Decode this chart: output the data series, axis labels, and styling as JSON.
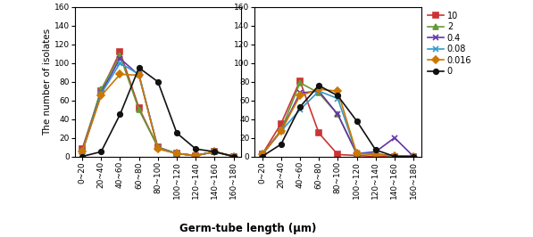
{
  "x_labels": [
    "0~20",
    "20~40",
    "40~60",
    "60~80",
    "80~100",
    "100~120",
    "120~140",
    "140~160",
    "160~180"
  ],
  "x_positions": [
    0,
    1,
    2,
    3,
    4,
    5,
    6,
    7,
    8
  ],
  "left_chart": {
    "series": {
      "10": [
        8,
        70,
        112,
        52,
        10,
        3,
        1,
        5,
        0
      ],
      "2": [
        5,
        72,
        108,
        50,
        10,
        3,
        1,
        5,
        0
      ],
      "0.4": [
        5,
        68,
        105,
        87,
        9,
        3,
        1,
        5,
        0
      ],
      "0.08": [
        5,
        67,
        100,
        88,
        9,
        3,
        1,
        5,
        0
      ],
      "0.016": [
        5,
        65,
        88,
        87,
        8,
        3,
        1,
        5,
        0
      ],
      "0": [
        0,
        5,
        45,
        95,
        80,
        25,
        8,
        5,
        0
      ]
    }
  },
  "right_chart": {
    "series": {
      "10": [
        2,
        35,
        81,
        25,
        2,
        1,
        0,
        0,
        0
      ],
      "2": [
        2,
        28,
        79,
        68,
        45,
        3,
        3,
        0,
        0
      ],
      "0.4": [
        2,
        27,
        68,
        70,
        45,
        3,
        5,
        20,
        0
      ],
      "0.08": [
        2,
        27,
        50,
        70,
        62,
        3,
        3,
        0,
        0
      ],
      "0.016": [
        2,
        27,
        65,
        72,
        70,
        3,
        2,
        1,
        0
      ],
      "0": [
        0,
        13,
        53,
        76,
        65,
        38,
        7,
        0,
        0
      ]
    }
  },
  "colors": {
    "10": "#cc3333",
    "2": "#669933",
    "0.4": "#6633aa",
    "0.08": "#3399cc",
    "0.016": "#cc7700",
    "0": "#111111"
  },
  "markers": {
    "10": "s",
    "2": "^",
    "0.4": "x",
    "0.08": "x",
    "0.016": "D",
    "0": "o"
  },
  "ylim": [
    0,
    160
  ],
  "yticks": [
    0,
    20,
    40,
    60,
    80,
    100,
    120,
    140,
    160
  ],
  "ylabel": "The number of isolates",
  "xlabel": "Germ-tube length (μm)",
  "legend_order": [
    "10",
    "2",
    "0.4",
    "0.08",
    "0.016",
    "0"
  ]
}
